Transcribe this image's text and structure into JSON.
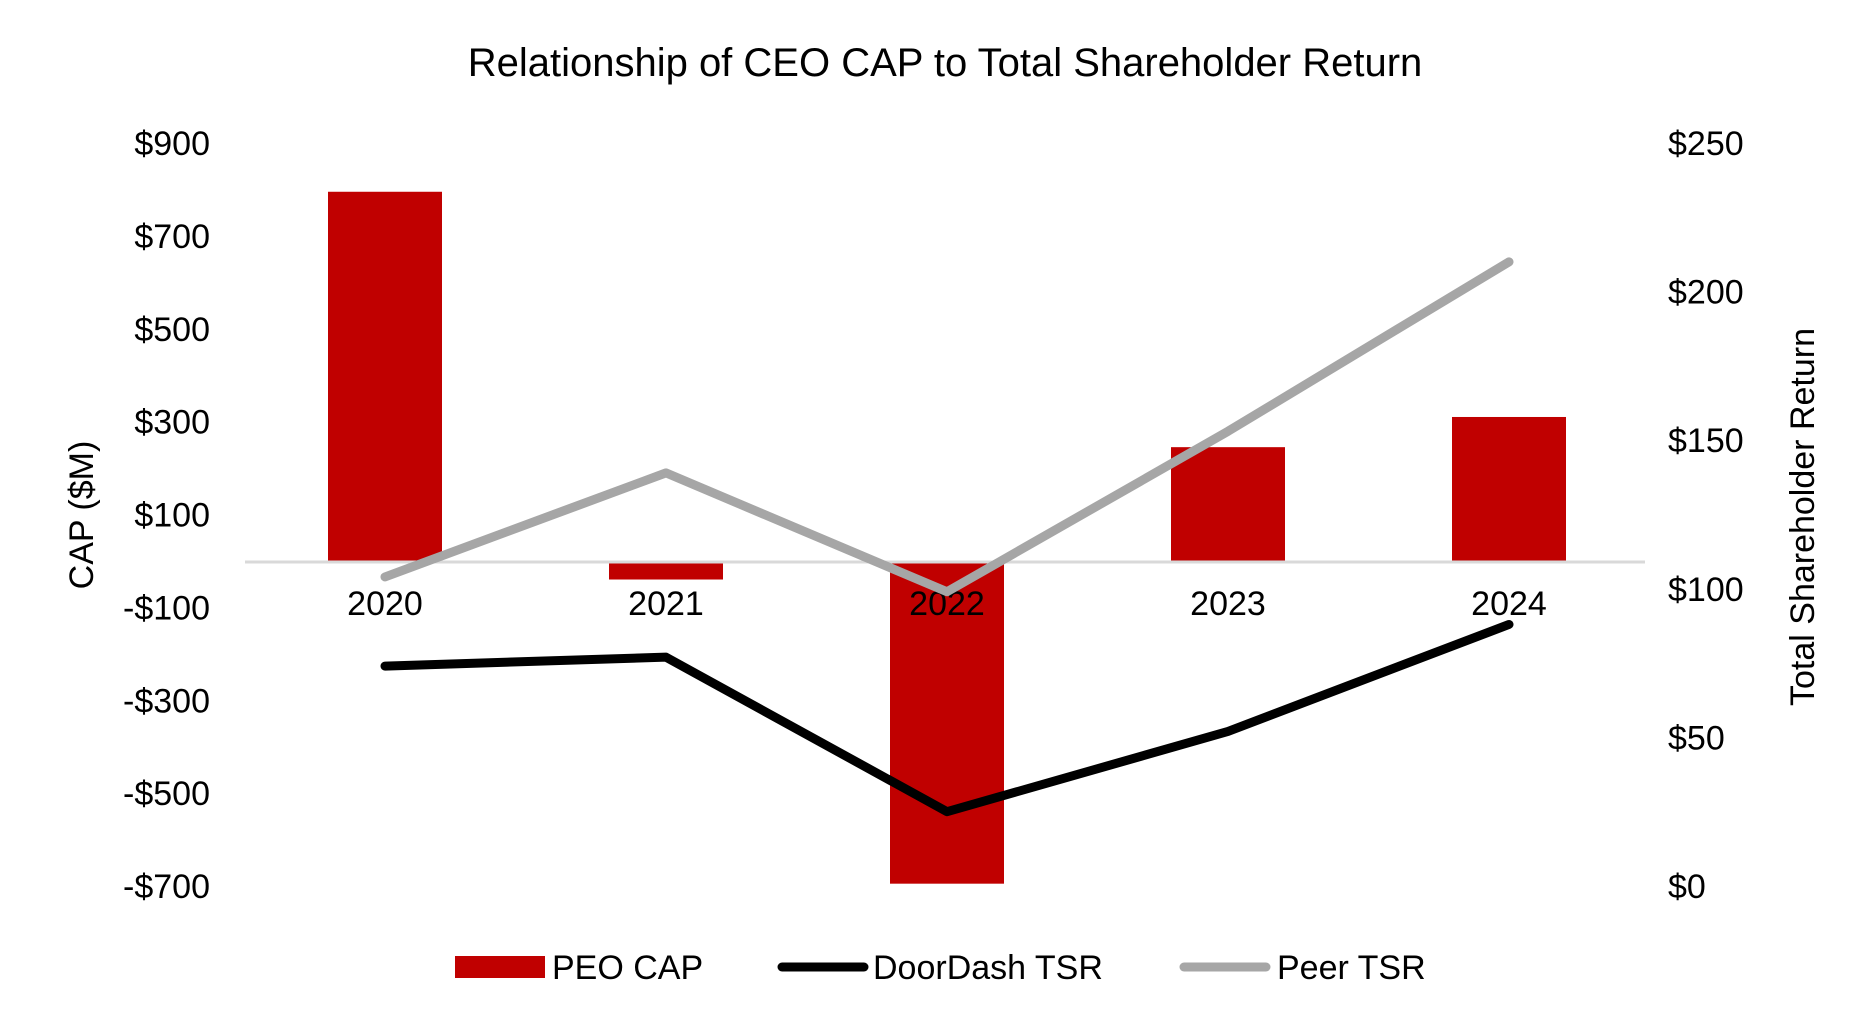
{
  "chart_data": {
    "type": "bar",
    "title": "Relationship of CEO CAP to Total Shareholder Return",
    "categories": [
      "2020",
      "2021",
      "2022",
      "2023",
      "2024"
    ],
    "y_left": {
      "label": "CAP ($M)",
      "range": [
        -700,
        900
      ],
      "ticks": [
        900,
        700,
        500,
        300,
        100,
        -100,
        -300,
        -500,
        -700
      ],
      "tick_labels": [
        "$900",
        "$700",
        "$500",
        "$300",
        "$100",
        "-$100",
        "-$300",
        "-$500",
        "-$700"
      ]
    },
    "y_right": {
      "label": "Total Shareholder Return",
      "range": [
        0,
        250
      ],
      "ticks": [
        250,
        200,
        150,
        100,
        50,
        0
      ],
      "tick_labels": [
        "$250",
        "$200",
        "$150",
        "$100",
        "$50",
        "$0"
      ]
    },
    "series": [
      {
        "name": "PEO CAP",
        "kind": "bar",
        "axis": "left",
        "color": "#C00000",
        "values": [
          795,
          -40,
          -695,
          245,
          310
        ]
      },
      {
        "name": "DoorDash TSR",
        "kind": "line",
        "axis": "right",
        "color": "#000000",
        "values": [
          74,
          77,
          25,
          52,
          88
        ]
      },
      {
        "name": "Peer TSR",
        "kind": "line",
        "axis": "right",
        "color": "#A6A6A6",
        "values": [
          104,
          139,
          99,
          153,
          210
        ]
      }
    ],
    "legend_position": "bottom",
    "grid": false
  }
}
